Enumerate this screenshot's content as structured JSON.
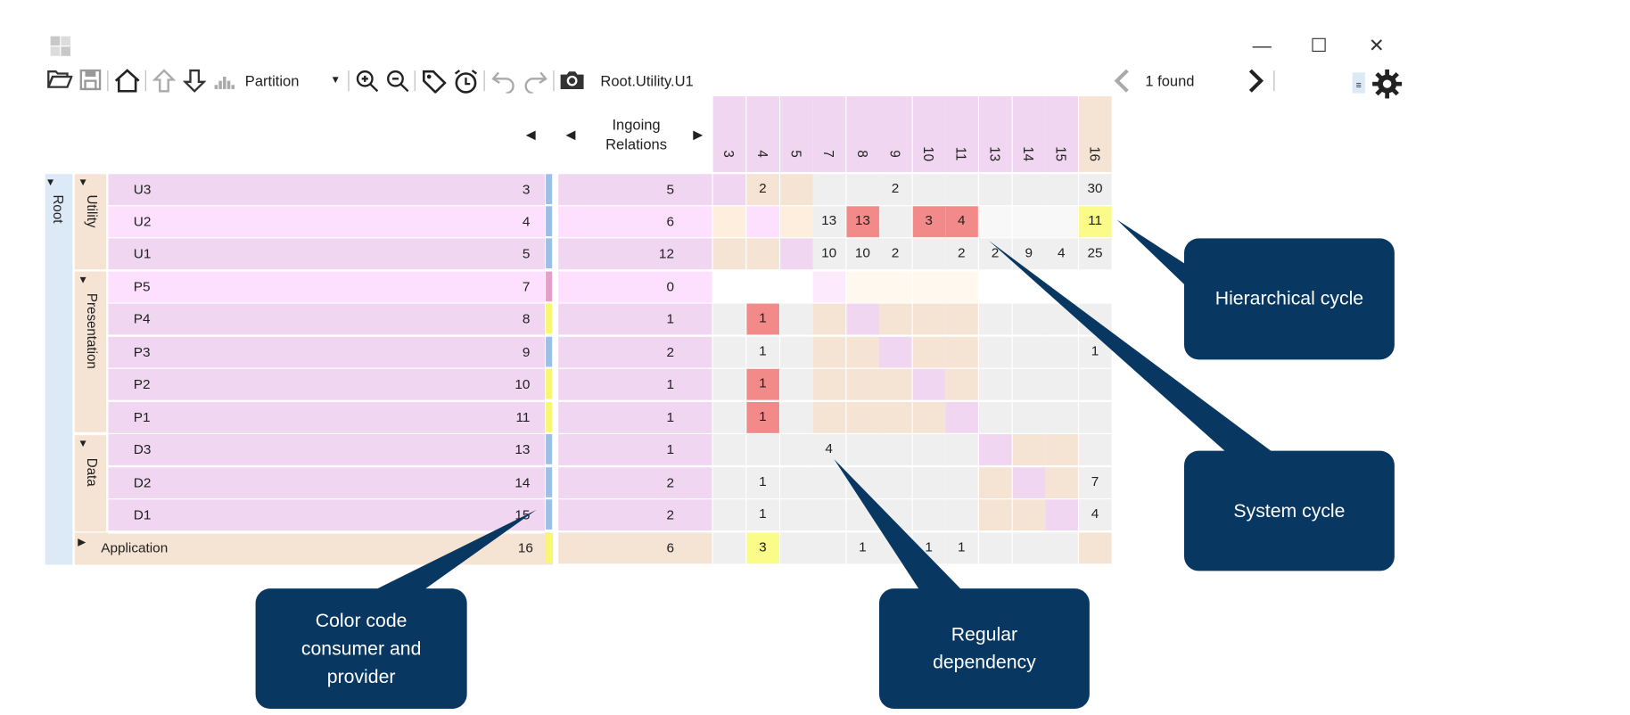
{
  "toolbar": {
    "partition_label": "Partition",
    "path": "Root.Utility.U1",
    "search_result": "1 found"
  },
  "header": {
    "ingoing_label": "Ingoing\nRelations",
    "columns": [
      "3",
      "4",
      "5",
      "7",
      "8",
      "9",
      "10",
      "11",
      "13",
      "14",
      "15",
      "16"
    ]
  },
  "tree": {
    "root": "Root",
    "groups": [
      "Utility",
      "Presentation",
      "Data"
    ],
    "application": {
      "name": "Application",
      "id": "16",
      "ingoing": "6"
    }
  },
  "rows": [
    {
      "name": "U3",
      "id": "3",
      "ingoing": "5"
    },
    {
      "name": "U2",
      "id": "4",
      "ingoing": "6"
    },
    {
      "name": "U1",
      "id": "5",
      "ingoing": "12"
    },
    {
      "name": "P5",
      "id": "7",
      "ingoing": "0"
    },
    {
      "name": "P4",
      "id": "8",
      "ingoing": "1"
    },
    {
      "name": "P3",
      "id": "9",
      "ingoing": "2"
    },
    {
      "name": "P2",
      "id": "10",
      "ingoing": "1"
    },
    {
      "name": "P1",
      "id": "11",
      "ingoing": "1"
    },
    {
      "name": "D3",
      "id": "13",
      "ingoing": "1"
    },
    {
      "name": "D2",
      "id": "14",
      "ingoing": "2"
    },
    {
      "name": "D1",
      "id": "15",
      "ingoing": "2"
    },
    {
      "name": "Application",
      "id": "16",
      "ingoing": "6"
    }
  ],
  "matrix": [
    [
      "",
      "2",
      "",
      "",
      "",
      "2",
      "",
      "",
      "",
      "",
      "",
      "30"
    ],
    [
      "",
      "",
      "",
      "13",
      "13",
      "",
      "3",
      "4",
      "",
      "",
      "",
      "11"
    ],
    [
      "",
      "",
      "",
      "10",
      "10",
      "2",
      "",
      "2",
      "2",
      "9",
      "4",
      "25"
    ],
    [
      "",
      "",
      "",
      "",
      "",
      "",
      "",
      "",
      "",
      "",
      "",
      ""
    ],
    [
      "",
      "1",
      "",
      "",
      "",
      "",
      "",
      "",
      "",
      "",
      "",
      ""
    ],
    [
      "",
      "1",
      "",
      "",
      "",
      "",
      "",
      "",
      "",
      "",
      "",
      "1"
    ],
    [
      "",
      "1",
      "",
      "",
      "",
      "",
      "",
      "",
      "",
      "",
      "",
      ""
    ],
    [
      "",
      "1",
      "",
      "",
      "",
      "",
      "",
      "",
      "",
      "",
      "",
      ""
    ],
    [
      "",
      "",
      "",
      "4",
      "",
      "",
      "",
      "",
      "",
      "",
      "",
      ""
    ],
    [
      "",
      "1",
      "",
      "",
      "",
      "",
      "",
      "",
      "",
      "",
      "",
      "7"
    ],
    [
      "",
      "1",
      "",
      "",
      "",
      "",
      "",
      "",
      "",
      "",
      "",
      "4"
    ],
    [
      "",
      "3",
      "",
      "",
      "1",
      "",
      "1",
      "1",
      "",
      "",
      "",
      ""
    ]
  ],
  "colors": {
    "consumer_provider_bar": "#9bbfe6",
    "provider_bar": "#f7f770",
    "consumer_bar": "#e4a0c8",
    "cycle_cell": "#f28a8a",
    "hierarchical_cycle_cell": "#fbfb8a",
    "callout": "#083862"
  },
  "callouts": {
    "hierarchical": "Hierarchical cycle",
    "system": "System cycle",
    "color_code": "Color code\nconsumer and\nprovider",
    "regular": "Regular\ndependency"
  }
}
